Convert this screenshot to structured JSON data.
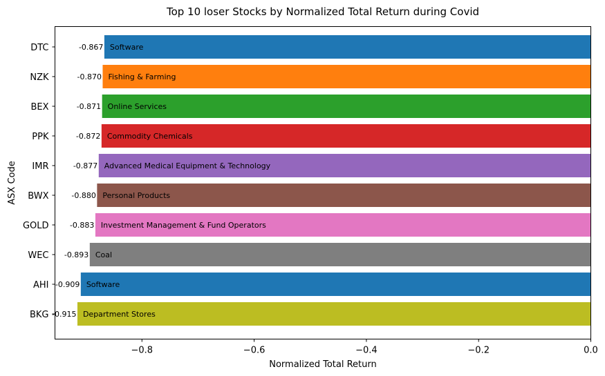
{
  "chart_data": {
    "type": "bar",
    "orientation": "horizontal",
    "title": "Top 10 loser Stocks by Normalized Total Return during Covid",
    "xlabel": "Normalized Total Return",
    "ylabel": "ASX Code",
    "xlim": [
      -0.955,
      0.0
    ],
    "xticks": [
      -0.8,
      -0.6,
      -0.4,
      -0.2,
      0.0
    ],
    "xtick_labels": [
      "−0.8",
      "−0.6",
      "−0.4",
      "−0.2",
      "0.0"
    ],
    "grid": false,
    "categories": [
      "DTC",
      "NZK",
      "BEX",
      "PPK",
      "IMR",
      "BWX",
      "GOLD",
      "WEC",
      "AHI",
      "BKG"
    ],
    "values": [
      -0.867,
      -0.87,
      -0.871,
      -0.872,
      -0.877,
      -0.88,
      -0.883,
      -0.893,
      -0.909,
      -0.915
    ],
    "value_labels": [
      "-0.867",
      "-0.870",
      "-0.871",
      "-0.872",
      "-0.877",
      "-0.880",
      "-0.883",
      "-0.893",
      "-0.909",
      "-0.915"
    ],
    "sectors": [
      "Software",
      "Fishing & Farming",
      "Online Services",
      "Commodity Chemicals",
      "Advanced Medical Equipment & Technology",
      "Personal Products",
      "Investment Management & Fund Operators",
      "Coal",
      "Software",
      "Department Stores"
    ],
    "colors": [
      "#1f77b4",
      "#ff7f0e",
      "#2ca02c",
      "#d62728",
      "#9467bd",
      "#8c564b",
      "#e377c2",
      "#7f7f7f",
      "#1f77b4",
      "#bcbd22"
    ]
  }
}
